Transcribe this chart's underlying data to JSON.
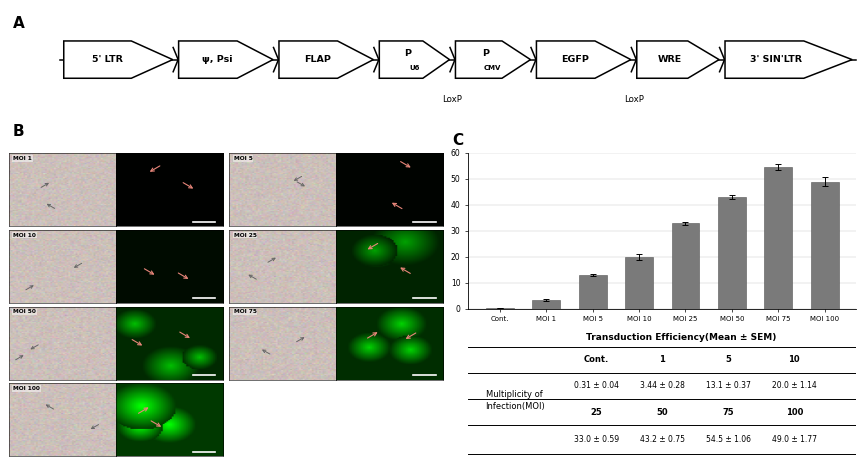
{
  "panel_A_label": "A",
  "panel_B_label": "B",
  "panel_C_label": "C",
  "bar_categories": [
    "Cont.",
    "MOI 1",
    "MOI 5",
    "MOI 10",
    "MOI 25",
    "MOI 50",
    "MOI 75",
    "MOI 100"
  ],
  "bar_values": [
    0.31,
    3.44,
    13.1,
    20.0,
    33.0,
    43.2,
    54.5,
    49.0
  ],
  "bar_errors": [
    0.04,
    0.28,
    0.37,
    1.14,
    0.59,
    0.75,
    1.06,
    1.77
  ],
  "bar_color": "#7a7a7a",
  "ylim": [
    0,
    60
  ],
  "yticks": [
    0,
    10,
    20,
    30,
    40,
    50,
    60
  ],
  "table_title": "Transduction Efficiency(Mean ± SEM)",
  "table_col_headers": [
    "Cont.",
    "1",
    "5",
    "10"
  ],
  "table_col_headers2": [
    "25",
    "50",
    "75",
    "100"
  ],
  "table_row_label_line1": "Multiplicity of",
  "table_row_label_line2": "Infection(MOI)",
  "table_values_row1": [
    "0.31 ± 0.04",
    "3.44 ± 0.28",
    "13.1 ± 0.37",
    "20.0 ± 1.14"
  ],
  "table_values_row2": [
    "33.0 ± 0.59",
    "43.2 ± 0.75",
    "54.5 ± 1.06",
    "49.0 ± 1.77"
  ],
  "bg_color": "#ffffff",
  "loxp_indices": [
    3,
    5
  ],
  "psi_label": "ψ, Psi",
  "arrow_box_labels": [
    "5' LTR",
    "PSI",
    "FLAP",
    "P_U6",
    "P_CMV",
    "EGFP",
    "WRE",
    "3' SIN'LTR"
  ],
  "moi_labels": [
    "MOI 1",
    "MOI 5",
    "MOI 10",
    "MOI 25",
    "MOI 50",
    "MOI 75",
    "MOI 100"
  ],
  "fl_intensities": [
    0.03,
    0.05,
    0.18,
    0.55,
    0.65,
    0.72,
    0.9
  ]
}
